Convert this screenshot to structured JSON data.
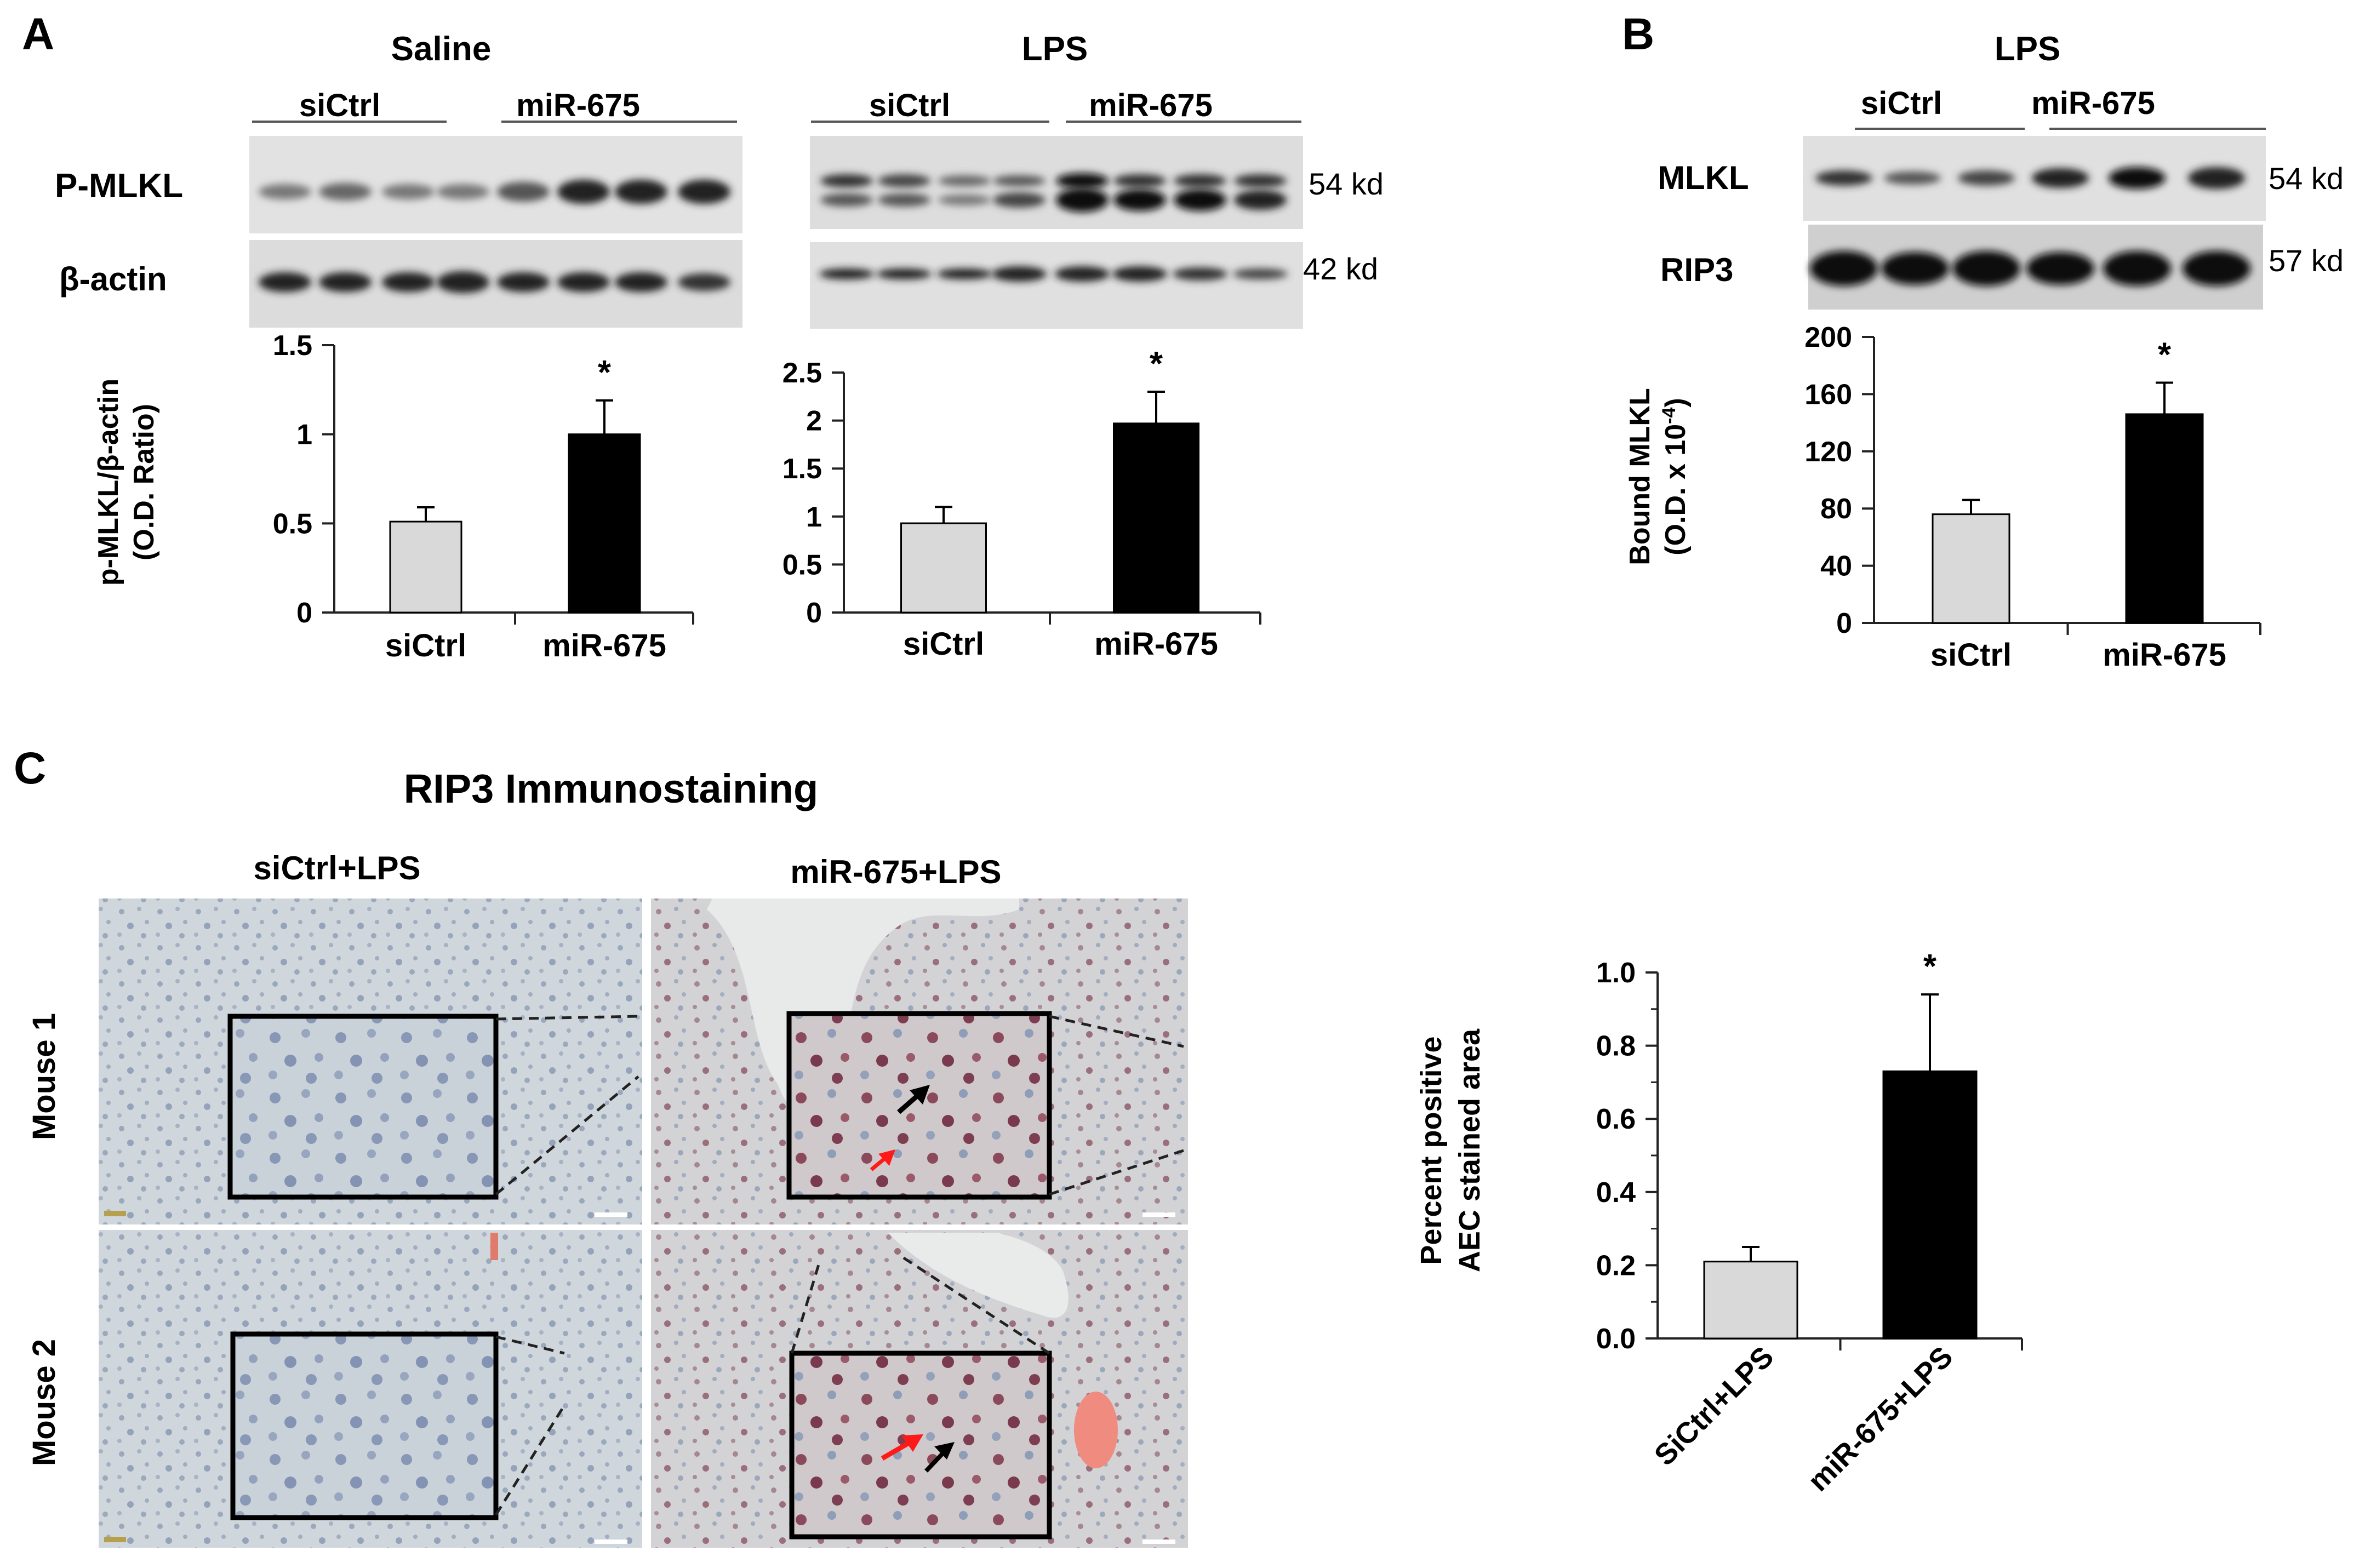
{
  "panel_a": {
    "letter": "A",
    "saline_title": "Saline",
    "lps_title": "LPS",
    "group_sictrl": "siCtrl",
    "group_mir": "miR-675",
    "row_pmlkl": "P-MLKL",
    "row_actin": "β-actin",
    "kd_54": "54 kd",
    "kd_42": "42 kd",
    "ylabel_line1": "p-MLKL/β-actin",
    "ylabel_line2": "(O.D. Ratio)"
  },
  "panel_b": {
    "letter": "B",
    "title": "LPS",
    "group_sictrl": "siCtrl",
    "group_mir": "miR-675",
    "row_mlkl": "MLKL",
    "row_rip3": "RIP3",
    "kd_54": "54 kd",
    "kd_57": "57 kd",
    "ylabel_line1": "Bound MLKL",
    "ylabel_line2_main": "(O.D. x 10",
    "ylabel_line2_sup": "-4",
    "ylabel_line2_close": ")"
  },
  "panel_c": {
    "letter": "C",
    "title": "RIP3 Immunostaining",
    "col1": "siCtrl+LPS",
    "col2": "miR-675+LPS",
    "row1": "Mouse 1",
    "row2": "Mouse 2",
    "ylabel_line1": "Percent positive",
    "ylabel_line2": "AEC stained area"
  },
  "significance_marker": "*",
  "colors": {
    "control_bar": "#d9d9d9",
    "treated_bar": "#000000",
    "tissue_bg": "#cdd6dc",
    "red_arrow": "#ff1a1a"
  },
  "chart_data": [
    {
      "id": "a_saline",
      "type": "bar",
      "categories": [
        "siCtrl",
        "miR-675"
      ],
      "values": [
        0.51,
        1.0
      ],
      "errors": [
        0.08,
        0.19
      ],
      "significant": [
        false,
        true
      ],
      "ylim": [
        0,
        1.5
      ],
      "yticks": [
        "0",
        "0.5",
        "1",
        "1.5"
      ]
    },
    {
      "id": "a_lps",
      "type": "bar",
      "categories": [
        "siCtrl",
        "miR-675"
      ],
      "values": [
        0.93,
        1.97
      ],
      "errors": [
        0.17,
        0.33
      ],
      "significant": [
        false,
        true
      ],
      "ylim": [
        0,
        2.5
      ],
      "yticks": [
        "0",
        "0.5",
        "1",
        "1.5",
        "2",
        "2.5"
      ]
    },
    {
      "id": "b",
      "type": "bar",
      "categories": [
        "siCtrl",
        "miR-675"
      ],
      "values": [
        76,
        146
      ],
      "errors": [
        10,
        22
      ],
      "significant": [
        false,
        true
      ],
      "ylim": [
        0,
        200
      ],
      "yticks": [
        "0",
        "40",
        "80",
        "120",
        "160",
        "200"
      ]
    },
    {
      "id": "c",
      "type": "bar",
      "categories": [
        "SiCtrl+LPS",
        "miR-675+LPS"
      ],
      "values": [
        0.21,
        0.73
      ],
      "errors": [
        0.04,
        0.21
      ],
      "significant": [
        false,
        true
      ],
      "ylim": [
        0,
        1.0
      ],
      "yticks": [
        "0.0",
        "0.2",
        "0.4",
        "0.6",
        "0.8",
        "1.0"
      ]
    }
  ]
}
